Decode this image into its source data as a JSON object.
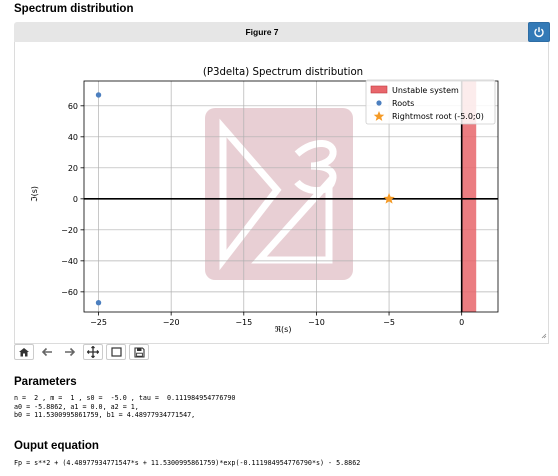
{
  "page": {
    "heading": "Spectrum distribution",
    "figure_title": "Figure 7",
    "parameters_heading": "Parameters",
    "parameters_lines": [
      "n =  2 , m =  1 , s0 =  -5.0 , tau =  0.111984954776790",
      "a0 = -5.8862, a1 = 0.0, a2 = 1,",
      "b0 = 11.5300995861759, b1 = 4.48977934771547,"
    ],
    "output_heading": "Ouput equation",
    "output_equation": "Fp = s**2 + (4.48977934771547*s + 11.5300995861759)*exp(-0.111984954776790*s) - 5.8862"
  },
  "toolbar": {
    "buttons": [
      "home-icon",
      "arrow-left-icon",
      "arrow-right-icon",
      "move-icon",
      "zoom-rectangle-icon",
      "floppy-disk-icon"
    ]
  },
  "chart_data": {
    "type": "scatter",
    "title": "(P3delta) Spectrum distribution",
    "xlabel": "ℜ(s)",
    "ylabel": "ℑ(s)",
    "xlim": [
      -26,
      2.5
    ],
    "ylim": [
      -73,
      76
    ],
    "xticks": [
      -25,
      -20,
      -15,
      -10,
      -5,
      0
    ],
    "yticks": [
      -60,
      -40,
      -20,
      0,
      20,
      40,
      60
    ],
    "grid": true,
    "legend_position": "top-right",
    "unstable_region": {
      "name": "Unstable system",
      "x_from": 0,
      "x_to": 1,
      "color": "#e8666b"
    },
    "series": [
      {
        "name": "Roots",
        "marker": "circle",
        "color": "#4c7fbf",
        "points": [
          [
            -25,
            67
          ],
          [
            -25,
            -67
          ]
        ]
      },
      {
        "name": "Rightmost root (-5.0;0)",
        "marker": "star",
        "color": "#f59b27",
        "points": [
          [
            -5,
            0
          ]
        ]
      }
    ]
  }
}
